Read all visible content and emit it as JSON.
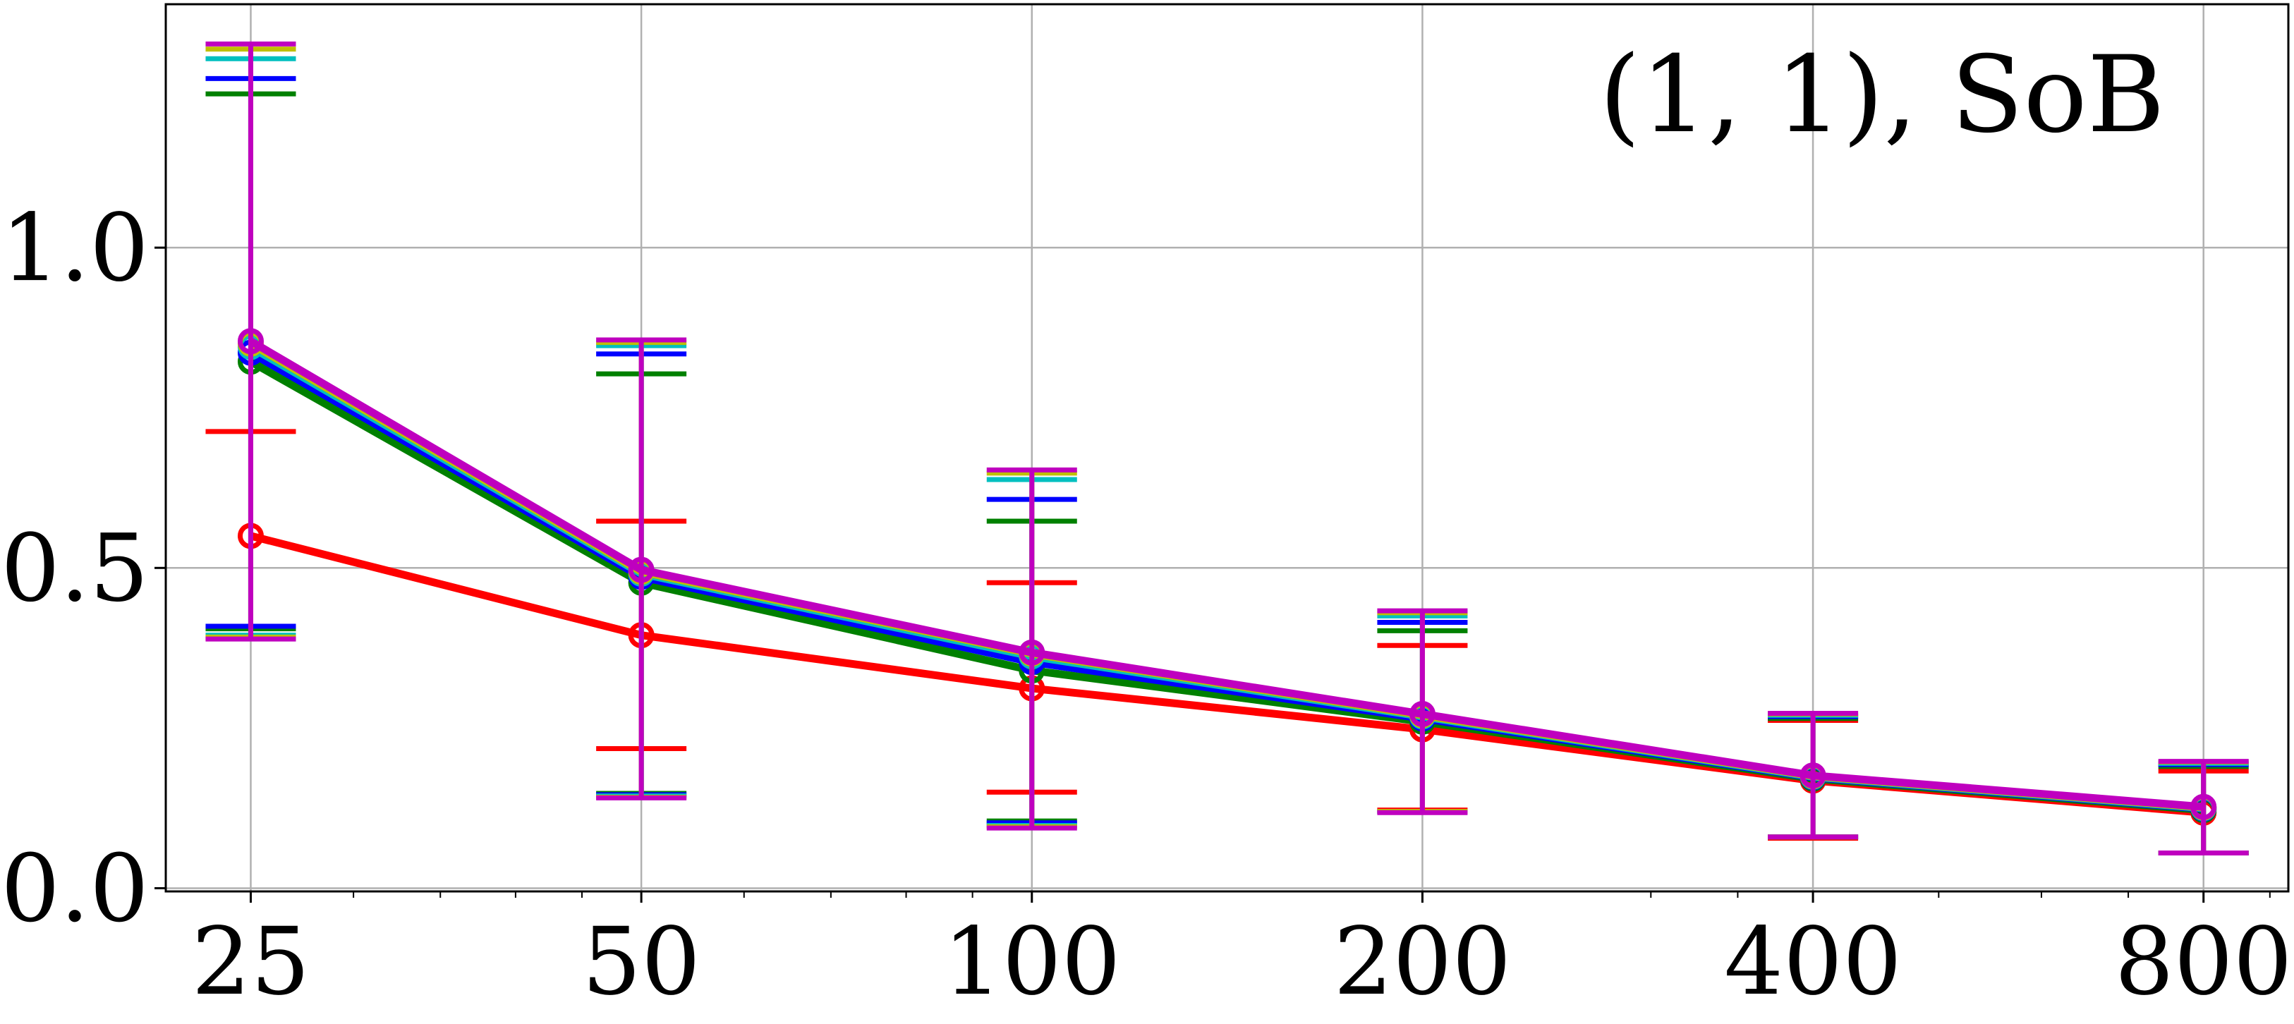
{
  "chart_data": {
    "type": "line",
    "annotation": "(1, 1), SoB",
    "xscale": "log2",
    "x": [
      25,
      50,
      100,
      200,
      400,
      800
    ],
    "x_tick_labels": [
      "25",
      "50",
      "100",
      "200",
      "400",
      "800"
    ],
    "y_ticks": [
      0.0,
      0.5,
      1.0
    ],
    "y_tick_labels": [
      "0.0",
      "0.5",
      "1.0"
    ],
    "xlim": [
      21.5,
      930
    ],
    "ylim": [
      -0.005,
      1.38
    ],
    "grid": true,
    "error_bars": true,
    "series": [
      {
        "color": "#ff0000",
        "marker": "circle",
        "values": [
          0.55,
          0.395,
          0.312,
          0.248,
          0.168,
          0.118
        ],
        "err_low": [
          0.39,
          0.218,
          0.15,
          0.122,
          0.078,
          0.055
        ],
        "err_high": [
          0.713,
          0.573,
          0.477,
          0.379,
          0.262,
          0.183
        ]
      },
      {
        "color": "#008000",
        "marker": "circle",
        "values": [
          0.822,
          0.477,
          0.34,
          0.26,
          0.171,
          0.122
        ],
        "err_low": [
          0.405,
          0.148,
          0.105,
          0.12,
          0.08,
          0.055
        ],
        "err_high": [
          1.24,
          0.803,
          0.573,
          0.402,
          0.265,
          0.19
        ]
      },
      {
        "color": "#0000ff",
        "marker": "circle",
        "values": [
          0.836,
          0.486,
          0.353,
          0.265,
          0.173,
          0.124
        ],
        "err_low": [
          0.409,
          0.146,
          0.102,
          0.12,
          0.08,
          0.055
        ],
        "err_high": [
          1.264,
          0.834,
          0.607,
          0.415,
          0.268,
          0.193
        ]
      },
      {
        "color": "#00bfbf",
        "marker": "circle",
        "values": [
          0.845,
          0.491,
          0.362,
          0.268,
          0.174,
          0.125
        ],
        "err_low": [
          0.395,
          0.144,
          0.098,
          0.12,
          0.08,
          0.055
        ],
        "err_high": [
          1.295,
          0.847,
          0.638,
          0.425,
          0.27,
          0.195
        ]
      },
      {
        "color": "#bfbf00",
        "marker": "circle",
        "values": [
          0.85,
          0.494,
          0.366,
          0.27,
          0.175,
          0.126
        ],
        "err_low": [
          0.392,
          0.142,
          0.096,
          0.12,
          0.08,
          0.055
        ],
        "err_high": [
          1.31,
          0.852,
          0.648,
          0.43,
          0.272,
          0.197
        ]
      },
      {
        "color": "#bf00bf",
        "marker": "circle",
        "values": [
          0.854,
          0.497,
          0.368,
          0.272,
          0.176,
          0.127
        ],
        "err_low": [
          0.389,
          0.141,
          0.094,
          0.118,
          0.08,
          0.055
        ],
        "err_high": [
          1.318,
          0.856,
          0.653,
          0.433,
          0.273,
          0.198
        ]
      }
    ]
  }
}
